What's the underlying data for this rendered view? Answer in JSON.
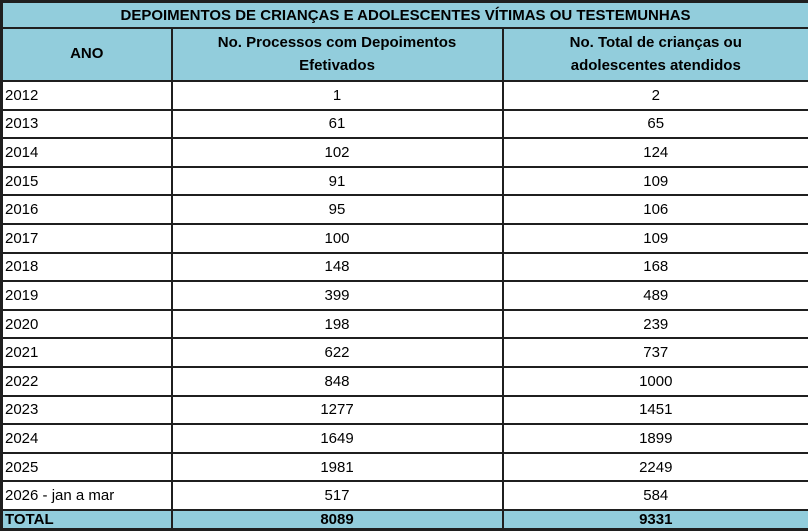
{
  "chart_data": {
    "type": "table",
    "title": "DEPOIMENTOS DE CRIANÇAS E ADOLESCENTES VÍTIMAS OU TESTEMUNHAS",
    "columns": [
      "ANO",
      "No. Processos com Depoimentos Efetivados",
      "No. Total de crianças ou adolescentes atendidos"
    ],
    "rows": [
      [
        "2012",
        1,
        2
      ],
      [
        "2013",
        61,
        65
      ],
      [
        "2014",
        102,
        124
      ],
      [
        "2015",
        91,
        109
      ],
      [
        "2016",
        95,
        106
      ],
      [
        "2017",
        100,
        109
      ],
      [
        "2018",
        148,
        168
      ],
      [
        "2019",
        399,
        489
      ],
      [
        "2020",
        198,
        239
      ],
      [
        "2021",
        622,
        737
      ],
      [
        "2022",
        848,
        1000
      ],
      [
        "2023",
        1277,
        1451
      ],
      [
        "2024",
        1649,
        1899
      ],
      [
        "2025",
        1981,
        2249
      ],
      [
        "2026 - jan a mar",
        517,
        584
      ]
    ],
    "total_row": [
      "TOTAL",
      8089,
      9331
    ]
  },
  "colors": {
    "header_bg": "#92CDDC",
    "border": "#1f1f1f",
    "text": "#000000",
    "row_bg": "#ffffff"
  }
}
